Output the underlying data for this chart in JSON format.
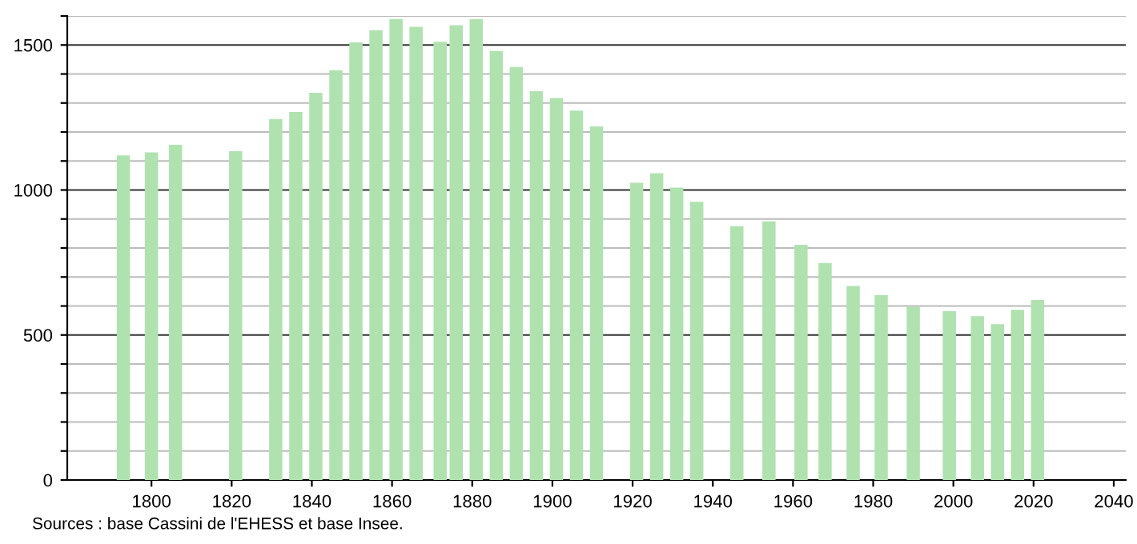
{
  "chart_data": {
    "type": "bar",
    "color": "#b0e2b0",
    "x": [
      1793,
      1800,
      1806,
      1821,
      1831,
      1836,
      1841,
      1846,
      1851,
      1856,
      1861,
      1866,
      1872,
      1876,
      1881,
      1886,
      1891,
      1896,
      1901,
      1906,
      1911,
      1921,
      1926,
      1931,
      1936,
      1946,
      1954,
      1962,
      1968,
      1975,
      1982,
      1990,
      1999,
      2006,
      2011,
      2016,
      2021
    ],
    "values": [
      1119,
      1130,
      1156,
      1134,
      1245,
      1269,
      1335,
      1413,
      1509,
      1551,
      1590,
      1563,
      1511,
      1568,
      1590,
      1479,
      1424,
      1341,
      1317,
      1274,
      1219,
      1025,
      1058,
      1008,
      959,
      875,
      892,
      811,
      748,
      669,
      637,
      597,
      582,
      565,
      537,
      587,
      621
    ],
    "xlim": [
      1779,
      2043
    ],
    "xticks": [
      1800,
      1820,
      1840,
      1860,
      1880,
      1900,
      1920,
      1940,
      1960,
      1980,
      2000,
      2020,
      2040
    ],
    "ylim": [
      0,
      1600
    ],
    "yticks": [
      0,
      {
        "value": 100,
        "label": null
      },
      {
        "value": 200,
        "label": null
      },
      {
        "value": 300,
        "label": null
      },
      {
        "value": 400,
        "label": null
      },
      500,
      {
        "value": 600,
        "label": null
      },
      {
        "value": 700,
        "label": null
      },
      {
        "value": 800,
        "label": null
      },
      {
        "value": 900,
        "label": null
      },
      1000,
      {
        "value": 1100,
        "label": null
      },
      {
        "value": 1200,
        "label": null
      },
      {
        "value": 1300,
        "label": null
      },
      {
        "value": 1400,
        "label": null
      },
      1500,
      {
        "value": 1600,
        "label": null
      }
    ],
    "grid": "y",
    "annotations": [
      "Sources : base Cassini de l'EHESS et base Insee."
    ]
  }
}
